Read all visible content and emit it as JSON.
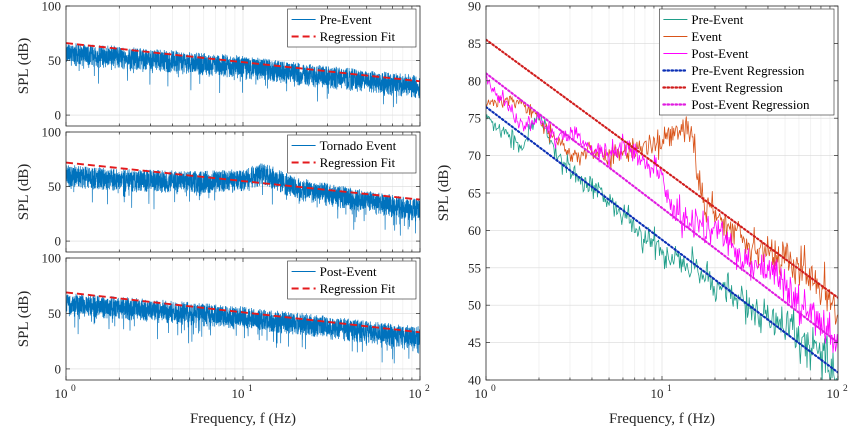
{
  "chart_data": [
    {
      "type": "line",
      "panel": "left-top",
      "xlabel": "",
      "ylabel": "SPL (dB)",
      "xscale": "log",
      "xlim": [
        1,
        100
      ],
      "ylim": [
        -10,
        100
      ],
      "yticks": [
        0,
        50,
        100
      ],
      "xticks": [
        1,
        10,
        100
      ],
      "grid": true,
      "legend_position": "top-right",
      "series": [
        {
          "name": "Pre-Event",
          "kind": "noisy-spectrum",
          "color": "#0072BD",
          "points": [
            [
              1,
              58
            ],
            [
              2,
              55
            ],
            [
              5,
              50
            ],
            [
              10,
              46
            ],
            [
              20,
              40
            ],
            [
              50,
              33
            ],
            [
              100,
              28
            ]
          ]
        },
        {
          "name": "Regression Fit",
          "kind": "dashed-line",
          "color": "#E41A1C",
          "points": [
            [
              1,
              66
            ],
            [
              100,
              31
            ]
          ]
        }
      ]
    },
    {
      "type": "line",
      "panel": "left-middle",
      "xlabel": "",
      "ylabel": "SPL (dB)",
      "xscale": "log",
      "xlim": [
        1,
        100
      ],
      "ylim": [
        -10,
        100
      ],
      "yticks": [
        0,
        50,
        100
      ],
      "xticks": [
        1,
        10,
        100
      ],
      "grid": true,
      "legend_position": "top-right",
      "series": [
        {
          "name": "Tornado Event",
          "kind": "noisy-spectrum",
          "color": "#0072BD",
          "points": [
            [
              1,
              62
            ],
            [
              2,
              58
            ],
            [
              5,
              56
            ],
            [
              10,
              58
            ],
            [
              13,
              64
            ],
            [
              20,
              50
            ],
            [
              50,
              38
            ],
            [
              100,
              30
            ]
          ]
        },
        {
          "name": "Regression Fit",
          "kind": "dashed-line",
          "color": "#E41A1C",
          "points": [
            [
              1,
              72
            ],
            [
              100,
              38
            ]
          ]
        }
      ]
    },
    {
      "type": "line",
      "panel": "left-bottom",
      "xlabel": "Frequency, f (Hz)",
      "ylabel": "SPL (dB)",
      "xscale": "log",
      "xlim": [
        1,
        100
      ],
      "ylim": [
        -10,
        100
      ],
      "yticks": [
        0,
        50,
        100
      ],
      "xticks": [
        1,
        10,
        100
      ],
      "grid": true,
      "legend_position": "top-right",
      "series": [
        {
          "name": "Post-Event",
          "kind": "noisy-spectrum",
          "color": "#0072BD",
          "points": [
            [
              1,
              60
            ],
            [
              2,
              57
            ],
            [
              5,
              52
            ],
            [
              10,
              48
            ],
            [
              20,
              43
            ],
            [
              50,
              35
            ],
            [
              100,
              30
            ]
          ]
        },
        {
          "name": "Regression Fit",
          "kind": "dashed-line",
          "color": "#E41A1C",
          "points": [
            [
              1,
              69
            ],
            [
              100,
              33
            ]
          ]
        }
      ]
    },
    {
      "type": "line",
      "panel": "right",
      "xlabel": "Frequency, f (Hz)",
      "ylabel": "SPL (dB)",
      "xscale": "log",
      "xlim": [
        1,
        100
      ],
      "ylim": [
        40,
        90
      ],
      "yticks": [
        40,
        45,
        50,
        55,
        60,
        65,
        70,
        75,
        80,
        85,
        90
      ],
      "xticks": [
        1,
        10,
        100
      ],
      "grid": true,
      "legend_position": "top-right",
      "series": [
        {
          "name": "Pre-Event",
          "kind": "spectrum",
          "color": "#1F9E89",
          "points": [
            [
              1,
              75
            ],
            [
              1.3,
              73
            ],
            [
              1.6,
              71
            ],
            [
              2,
              75.5
            ],
            [
              2.5,
              70
            ],
            [
              3,
              68
            ],
            [
              4,
              66
            ],
            [
              5,
              64
            ],
            [
              6,
              62
            ],
            [
              8,
              59
            ],
            [
              10,
              57
            ],
            [
              15,
              55
            ],
            [
              20,
              53
            ],
            [
              30,
              50
            ],
            [
              40,
              48
            ],
            [
              50,
              47
            ],
            [
              60,
              46
            ],
            [
              70,
              44
            ],
            [
              80,
              43
            ],
            [
              90,
              42
            ],
            [
              100,
              41
            ]
          ]
        },
        {
          "name": "Event",
          "kind": "spectrum",
          "color": "#D95319",
          "points": [
            [
              1,
              77
            ],
            [
              1.3,
              77.5
            ],
            [
              1.6,
              77
            ],
            [
              2,
              75
            ],
            [
              2.5,
              72
            ],
            [
              3,
              70
            ],
            [
              4,
              70.5
            ],
            [
              5,
              70
            ],
            [
              6,
              70
            ],
            [
              7,
              71
            ],
            [
              8,
              71.5
            ],
            [
              10,
              72
            ],
            [
              12,
              73
            ],
            [
              13,
              74
            ],
            [
              14,
              73
            ],
            [
              15,
              72
            ],
            [
              17,
              64
            ],
            [
              20,
              62
            ],
            [
              30,
              59
            ],
            [
              40,
              57
            ],
            [
              50,
              56
            ],
            [
              60,
              55
            ],
            [
              70,
              54
            ],
            [
              80,
              52
            ],
            [
              90,
              51
            ],
            [
              100,
              51
            ]
          ]
        },
        {
          "name": "Post-Event",
          "kind": "spectrum",
          "color": "#FF00FF",
          "points": [
            [
              1,
              80
            ],
            [
              1.3,
              77
            ],
            [
              1.6,
              74
            ],
            [
              2,
              75
            ],
            [
              2.5,
              72
            ],
            [
              3,
              73
            ],
            [
              4,
              71
            ],
            [
              5,
              70
            ],
            [
              6,
              71.5
            ],
            [
              8,
              69
            ],
            [
              10,
              67
            ],
            [
              12,
              62
            ],
            [
              15,
              61
            ],
            [
              20,
              60
            ],
            [
              25,
              58
            ],
            [
              30,
              56
            ],
            [
              40,
              55
            ],
            [
              50,
              53
            ],
            [
              60,
              50
            ],
            [
              70,
              49
            ],
            [
              80,
              47
            ],
            [
              90,
              46
            ],
            [
              100,
              45
            ]
          ]
        },
        {
          "name": "Pre-Event Regression",
          "kind": "dotted-line",
          "color": "#0B2FB5",
          "points": [
            [
              1,
              76.5
            ],
            [
              100,
              41
            ]
          ]
        },
        {
          "name": "Event Regression",
          "kind": "dotted-line",
          "color": "#D01C1C",
          "points": [
            [
              1,
              85.5
            ],
            [
              100,
              51
            ]
          ]
        },
        {
          "name": "Post-Event Regression",
          "kind": "dotted-line",
          "color": "#E01CE0",
          "points": [
            [
              1,
              81
            ],
            [
              100,
              45
            ]
          ]
        }
      ]
    }
  ]
}
